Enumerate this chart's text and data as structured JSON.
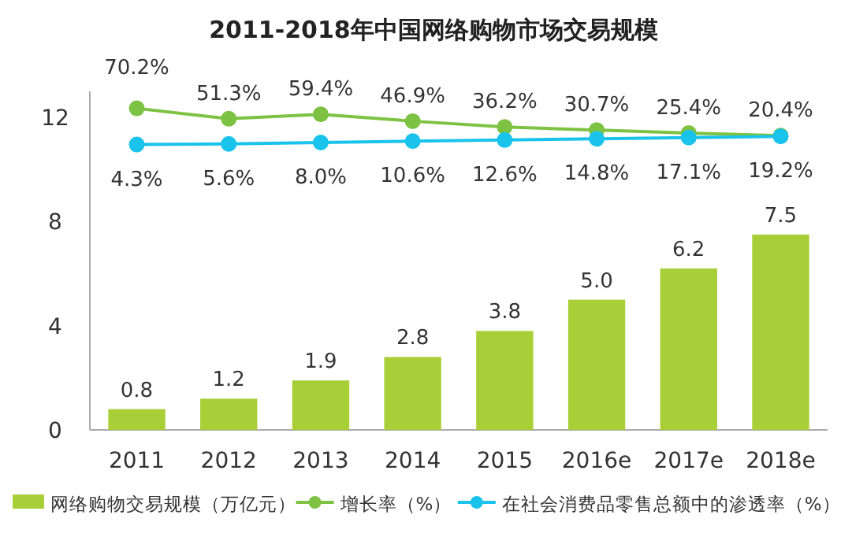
{
  "chart_data": {
    "type": "bar",
    "title": "2011-2018年中国网络购物市场交易规模",
    "categories": [
      "2011",
      "2012",
      "2013",
      "2014",
      "2015",
      "2016e",
      "2017e",
      "2018e"
    ],
    "series": [
      {
        "name": "网络购物交易规模（万亿元）",
        "color": "#a9cf38",
        "values": [
          0.8,
          1.2,
          1.9,
          2.8,
          3.8,
          5.0,
          6.2,
          7.5
        ],
        "value_labels": [
          "0.8",
          "1.2",
          "1.9",
          "2.8",
          "3.8",
          "5.0",
          "6.2",
          "7.5"
        ]
      },
      {
        "name": "增长率（%）",
        "type": "line",
        "axis": "y2",
        "color": "#7dc243",
        "values": [
          70.2,
          51.3,
          59.4,
          46.9,
          36.2,
          30.7,
          25.4,
          20.4
        ],
        "value_labels": [
          "70.2%",
          "51.3%",
          "59.4%",
          "46.9%",
          "36.2%",
          "30.7%",
          "25.4%",
          "20.4%"
        ]
      },
      {
        "name": "在社会消费品零售总额中的渗透率（%）",
        "type": "line",
        "axis": "y2",
        "color": "#19c3eb",
        "values": [
          4.3,
          5.6,
          8.0,
          10.6,
          12.6,
          14.8,
          17.1,
          19.2
        ],
        "value_labels": [
          "4.3%",
          "5.6%",
          "8.0%",
          "10.6%",
          "12.6%",
          "14.8%",
          "17.1%",
          "19.2%"
        ]
      }
    ],
    "ylim": [
      0,
      13
    ],
    "yticks": [
      0,
      4,
      8,
      12
    ],
    "tick_labels": "xy",
    "marker": "circle",
    "legend": "bottom",
    "grid": false
  }
}
